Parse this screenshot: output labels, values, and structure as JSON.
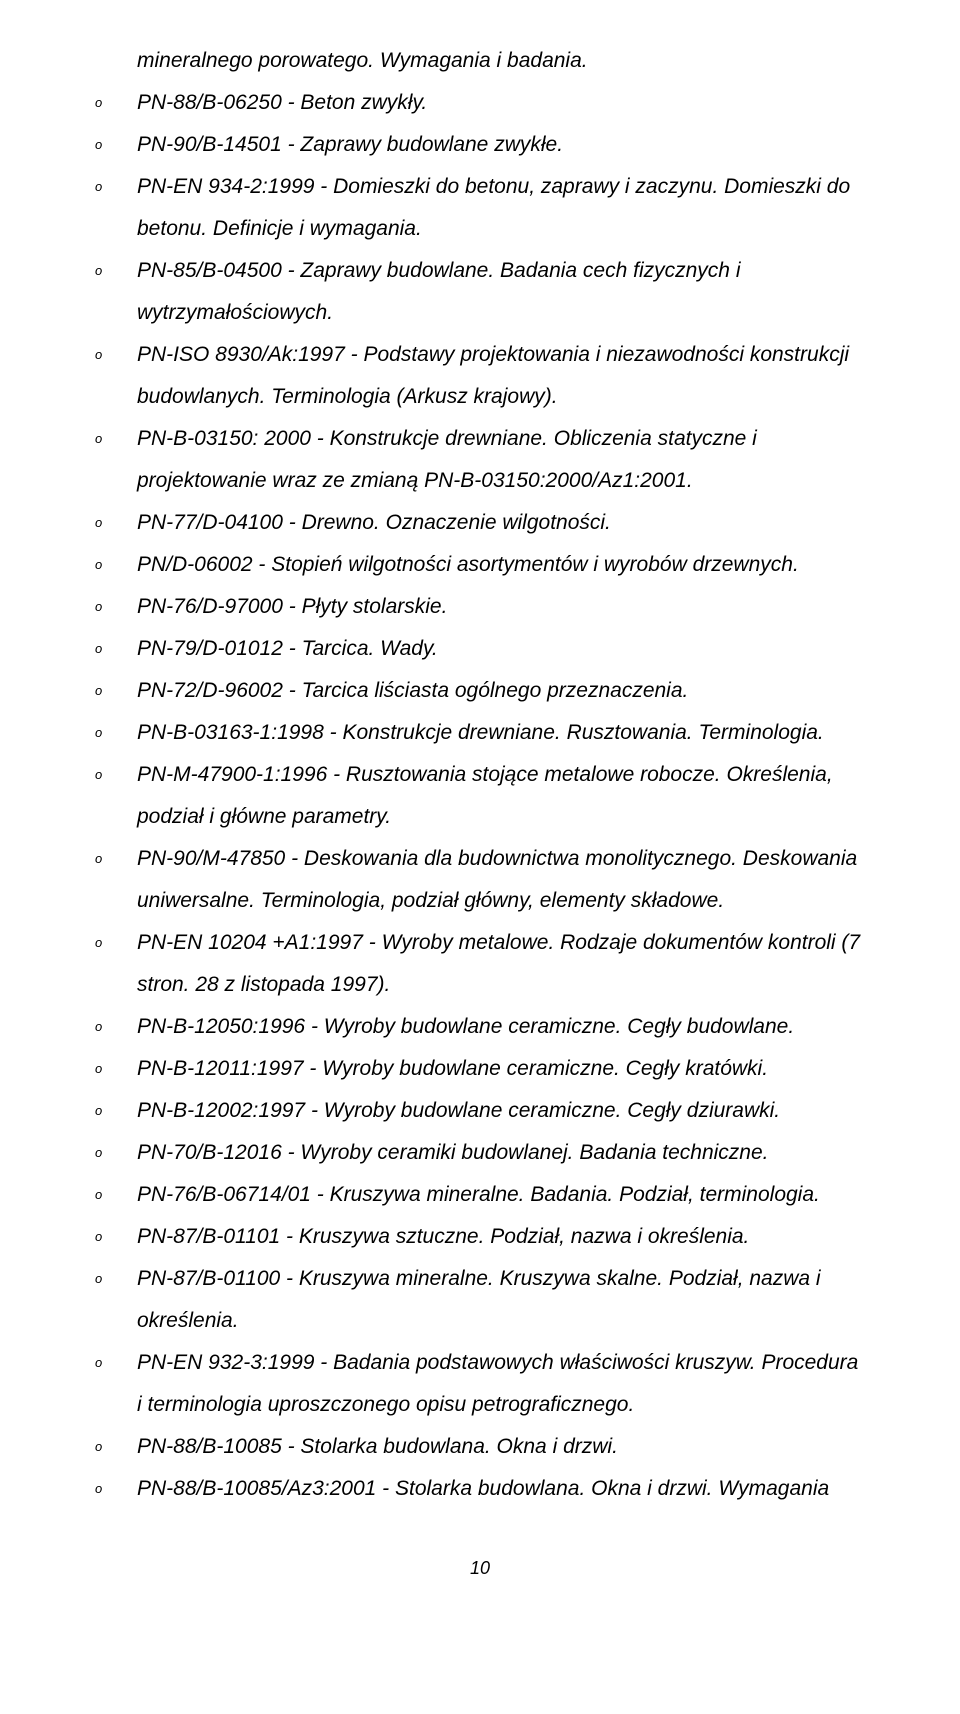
{
  "continuation": "mineralnego porowatego. Wymagania i badania.",
  "items": [
    "PN-88/B-06250 - Beton zwykły.",
    "PN-90/B-14501 - Zaprawy budowlane zwykłe.",
    "PN-EN 934-2:1999 - Domieszki do betonu, zaprawy i zaczynu. Domieszki do betonu. Definicje i wymagania.",
    "PN-85/B-04500 - Zaprawy budowlane. Badania cech fizycznych i wytrzymałościowych.",
    "PN-ISO 8930/Ak:1997 - Podstawy projektowania i niezawodności konstrukcji budowlanych. Terminologia (Arkusz krajowy).",
    "PN-B-03150: 2000 - Konstrukcje drewniane. Obliczenia statyczne i projektowanie wraz ze zmianą PN-B-03150:2000/Az1:2001.",
    "PN-77/D-04100 - Drewno. Oznaczenie wilgotności.",
    "PN/D-06002 - Stopień wilgotności asortymentów i wyrobów drzewnych.",
    "PN-76/D-97000 - Płyty stolarskie.",
    "PN-79/D-01012 - Tarcica. Wady.",
    "PN-72/D-96002 - Tarcica liściasta ogólnego przeznaczenia.",
    "PN-B-03163-1:1998 - Konstrukcje drewniane. Rusztowania. Terminologia.",
    "PN-M-47900-1:1996 - Rusztowania stojące metalowe robocze. Określenia, podział i główne parametry.",
    "PN-90/M-47850 - Deskowania dla budownictwa monolitycznego. Deskowania uniwersalne. Terminologia, podział główny, elementy składowe.",
    "PN-EN 10204 +A1:1997 - Wyroby metalowe. Rodzaje dokumentów kontroli (7 stron. 28 z listopada 1997).",
    "PN-B-12050:1996 - Wyroby budowlane ceramiczne. Cegły budowlane.",
    "PN-B-12011:1997 - Wyroby budowlane ceramiczne. Cegły kratówki.",
    "PN-B-12002:1997 - Wyroby budowlane ceramiczne. Cegły dziurawki.",
    "PN-70/B-12016 - Wyroby ceramiki budowlanej. Badania techniczne.",
    "PN-76/B-06714/01 - Kruszywa mineralne. Badania. Podział, terminologia.",
    "PN-87/B-01101 - Kruszywa sztuczne. Podział, nazwa i określenia.",
    "PN-87/B-01100 - Kruszywa mineralne. Kruszywa skalne. Podział, nazwa i określenia.",
    "PN-EN 932-3:1999 - Badania podstawowych właściwości kruszyw. Procedura i terminologia uproszczonego opisu petrograficznego.",
    "PN-88/B-10085 - Stolarka budowlana. Okna i drzwi.",
    "PN-88/B-10085/Az3:2001 - Stolarka budowlana. Okna i drzwi. Wymagania"
  ],
  "page_number": "10"
}
